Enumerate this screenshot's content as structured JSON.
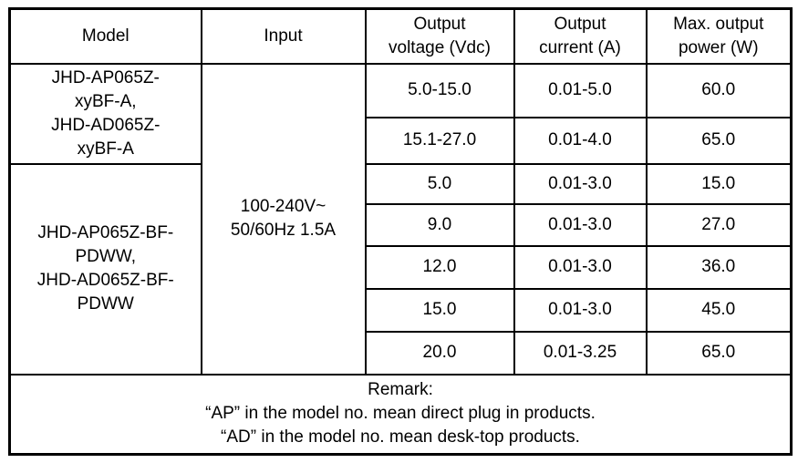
{
  "table": {
    "headers": {
      "model": "Model",
      "input": "Input",
      "output_voltage": [
        "Output",
        "voltage (Vdc)"
      ],
      "output_current": [
        "Output",
        "current (A)"
      ],
      "max_output_power": [
        "Max. output",
        "power (W)"
      ]
    },
    "model_groups": [
      {
        "lines": [
          "JHD-AP065Z-",
          "xyBF-A,",
          "JHD-AD065Z-",
          "xyBF-A"
        ]
      },
      {
        "lines": [
          "JHD-AP065Z-BF-",
          "PDWW,",
          "JHD-AD065Z-BF-",
          "PDWW"
        ]
      }
    ],
    "input_value": [
      "100-240V~",
      "50/60Hz 1.5A"
    ],
    "rows": [
      {
        "voltage": "5.0-15.0",
        "current": "0.01-5.0",
        "power": "60.0"
      },
      {
        "voltage": "15.1-27.0",
        "current": "0.01-4.0",
        "power": "65.0"
      },
      {
        "voltage": "5.0",
        "current": "0.01-3.0",
        "power": "15.0"
      },
      {
        "voltage": "9.0",
        "current": "0.01-3.0",
        "power": "27.0"
      },
      {
        "voltage": "12.0",
        "current": "0.01-3.0",
        "power": "36.0"
      },
      {
        "voltage": "15.0",
        "current": "0.01-3.0",
        "power": "45.0"
      },
      {
        "voltage": "20.0",
        "current": "0.01-3.25",
        "power": "65.0"
      }
    ],
    "remark": {
      "lines": [
        "Remark:",
        "“AP” in the model no. mean direct plug in products.",
        "“AD” in the model no. mean desk-top products."
      ]
    }
  },
  "colors": {
    "background": "#ffffff",
    "border": "#000000",
    "text": "#000000"
  }
}
